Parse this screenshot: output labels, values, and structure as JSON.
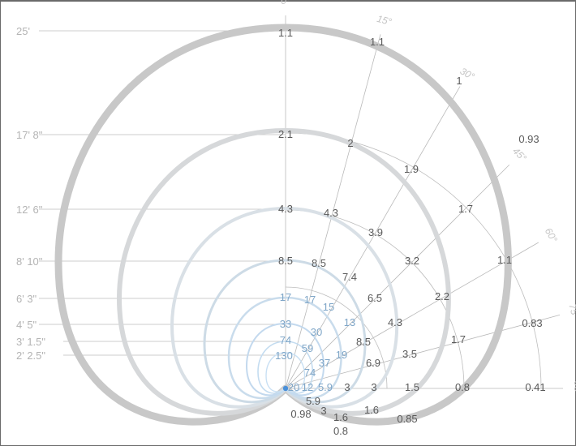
{
  "chart_data": {
    "type": "polar-isolux",
    "distance_labels": [
      "25'",
      "17' 8\"",
      "12' 6\"",
      "8' 10\"",
      "6' 3\"",
      "4' 5\"",
      "3' 1.5\"",
      "2' 2.5\""
    ],
    "angle_labels": [
      "0°",
      "15°",
      "30°",
      "45°",
      "60°",
      "75°",
      "90°"
    ],
    "levels": [
      {
        "distance": "25'",
        "color": "#c8c8c8",
        "width": 9,
        "labels": [
          "1.1",
          "1.1",
          "1",
          "0.93",
          "1.1",
          "0.83",
          "0.41",
          "0.85",
          "0.8"
        ]
      },
      {
        "distance": "17' 8\"",
        "color": "#d6d8da",
        "width": 6,
        "labels": [
          "2.1",
          "2",
          "1.9",
          "1.7",
          "2.2",
          "1.7",
          "0.8",
          "1.6",
          "1.6"
        ]
      },
      {
        "distance": "12' 6\"",
        "color": "#d9e0e6",
        "width": 4,
        "labels": [
          "4.3",
          "4.3",
          "3.9",
          "3.2",
          "4.3",
          "3.5",
          "1.5",
          "3",
          "0.98"
        ]
      },
      {
        "distance": "8' 10\"",
        "color": "#cddbe6",
        "width": 3,
        "labels": [
          "8.5",
          "8.5",
          "7.4",
          "6.5",
          "8.5",
          "6.9",
          "3",
          "5.9",
          "3"
        ]
      },
      {
        "distance": "6' 3\"",
        "color": "#c9dcec",
        "width": 2.5,
        "labels": [
          "17",
          "17",
          "15",
          "13",
          "19",
          "5.9"
        ]
      },
      {
        "distance": "4' 5\"",
        "color": "#c3d9ee",
        "width": 2,
        "labels": [
          "33",
          "30",
          "37",
          "12"
        ]
      },
      {
        "distance": "3' 1.5\"",
        "color": "#c4dcf0",
        "width": 1.6,
        "labels": [
          "74",
          "59",
          "74",
          "20"
        ]
      },
      {
        "distance": "2' 2.5\"",
        "color": "#c9e0f4",
        "width": 1.4,
        "labels": [
          "130"
        ]
      }
    ],
    "colors": {
      "dark_label": "#5a5a5a",
      "blue_label": "#7fa6c8",
      "origin": "#4a90d9"
    }
  }
}
